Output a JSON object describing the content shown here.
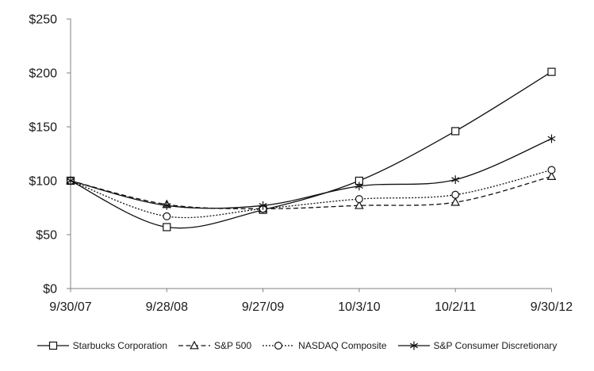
{
  "chart_data": {
    "type": "line",
    "title": "",
    "xlabel": "",
    "ylabel": "",
    "categories": [
      "9/30/07",
      "9/28/08",
      "9/27/09",
      "10/3/10",
      "10/2/11",
      "9/30/12"
    ],
    "series": [
      {
        "name": "Starbucks Corporation",
        "marker": "square",
        "line_style": "solid",
        "values": [
          100,
          57,
          73,
          100,
          146,
          201
        ]
      },
      {
        "name": "S&P 500",
        "marker": "triangle",
        "line_style": "dashed",
        "values": [
          100,
          78,
          74,
          77,
          80,
          104
        ]
      },
      {
        "name": "NASDAQ Composite",
        "marker": "circle",
        "line_style": "dotted",
        "values": [
          100,
          67,
          74,
          83,
          87,
          110
        ]
      },
      {
        "name": "S&P Consumer Discretionary",
        "marker": "asterisk",
        "line_style": "solid",
        "values": [
          100,
          77,
          77,
          95,
          101,
          139
        ]
      }
    ],
    "y_tick_labels": [
      "$0",
      "$50",
      "$100",
      "$150",
      "$200",
      "$250"
    ],
    "y_tick_values": [
      0,
      50,
      100,
      150,
      200,
      250
    ],
    "ylim": [
      0,
      250
    ],
    "grid": false,
    "smooth_lines": true,
    "legend_position": "bottom",
    "colors": {
      "series_line": "#111111",
      "axis": "#808080",
      "text": "#1a1a1a",
      "marker_fill": "#ffffff"
    }
  }
}
